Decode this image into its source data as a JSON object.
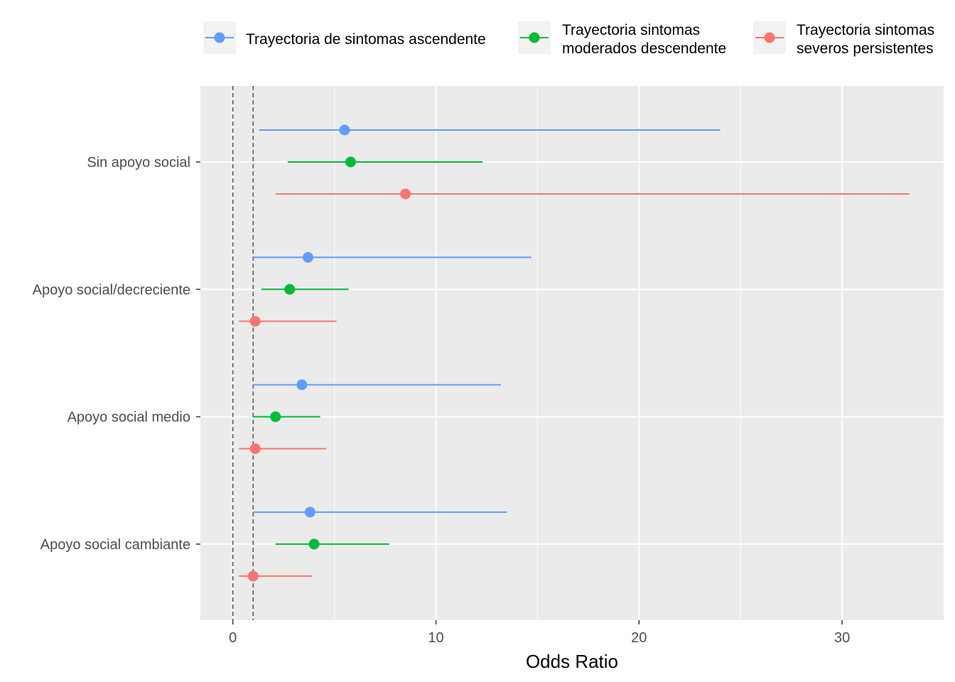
{
  "chart_data": {
    "type": "scatter",
    "subtype": "forest-plot",
    "xlabel": "Odds Ratio",
    "ylabel": "",
    "xlim": [
      -1.6,
      35.0
    ],
    "x_ticks": [
      0,
      10,
      20,
      30
    ],
    "x_minor_ticks": [
      5,
      15,
      25
    ],
    "reference_lines": [
      0,
      1
    ],
    "grid": true,
    "legend_position": "top",
    "categories": [
      "Sin apoyo social",
      "Apoyo social/decreciente",
      "Apoyo social medio",
      "Apoyo social cambiante"
    ],
    "series": [
      {
        "name_lines": [
          "Trayectoria de sintomas ascendente"
        ],
        "color": "#619CFF",
        "points": [
          {
            "estimate": 5.5,
            "low": 1.3,
            "high": 24.0
          },
          {
            "estimate": 3.7,
            "low": 1.0,
            "high": 14.7
          },
          {
            "estimate": 3.4,
            "low": 1.0,
            "high": 13.2
          },
          {
            "estimate": 3.8,
            "low": 1.0,
            "high": 13.5
          }
        ]
      },
      {
        "name_lines": [
          "Trayectoria sintomas",
          " moderados descendente"
        ],
        "color": "#00BA38",
        "points": [
          {
            "estimate": 5.8,
            "low": 2.7,
            "high": 12.3
          },
          {
            "estimate": 2.8,
            "low": 1.4,
            "high": 5.7
          },
          {
            "estimate": 2.1,
            "low": 1.0,
            "high": 4.3
          },
          {
            "estimate": 4.0,
            "low": 2.1,
            "high": 7.7
          }
        ]
      },
      {
        "name_lines": [
          "Trayectoria sintomas",
          " severos persistentes"
        ],
        "color": "#F8766D",
        "points": [
          {
            "estimate": 8.5,
            "low": 2.1,
            "high": 33.3
          },
          {
            "estimate": 1.1,
            "low": 0.3,
            "high": 5.1
          },
          {
            "estimate": 1.1,
            "low": 0.3,
            "high": 4.6
          },
          {
            "estimate": 1.0,
            "low": 0.3,
            "high": 3.9
          }
        ]
      }
    ]
  }
}
